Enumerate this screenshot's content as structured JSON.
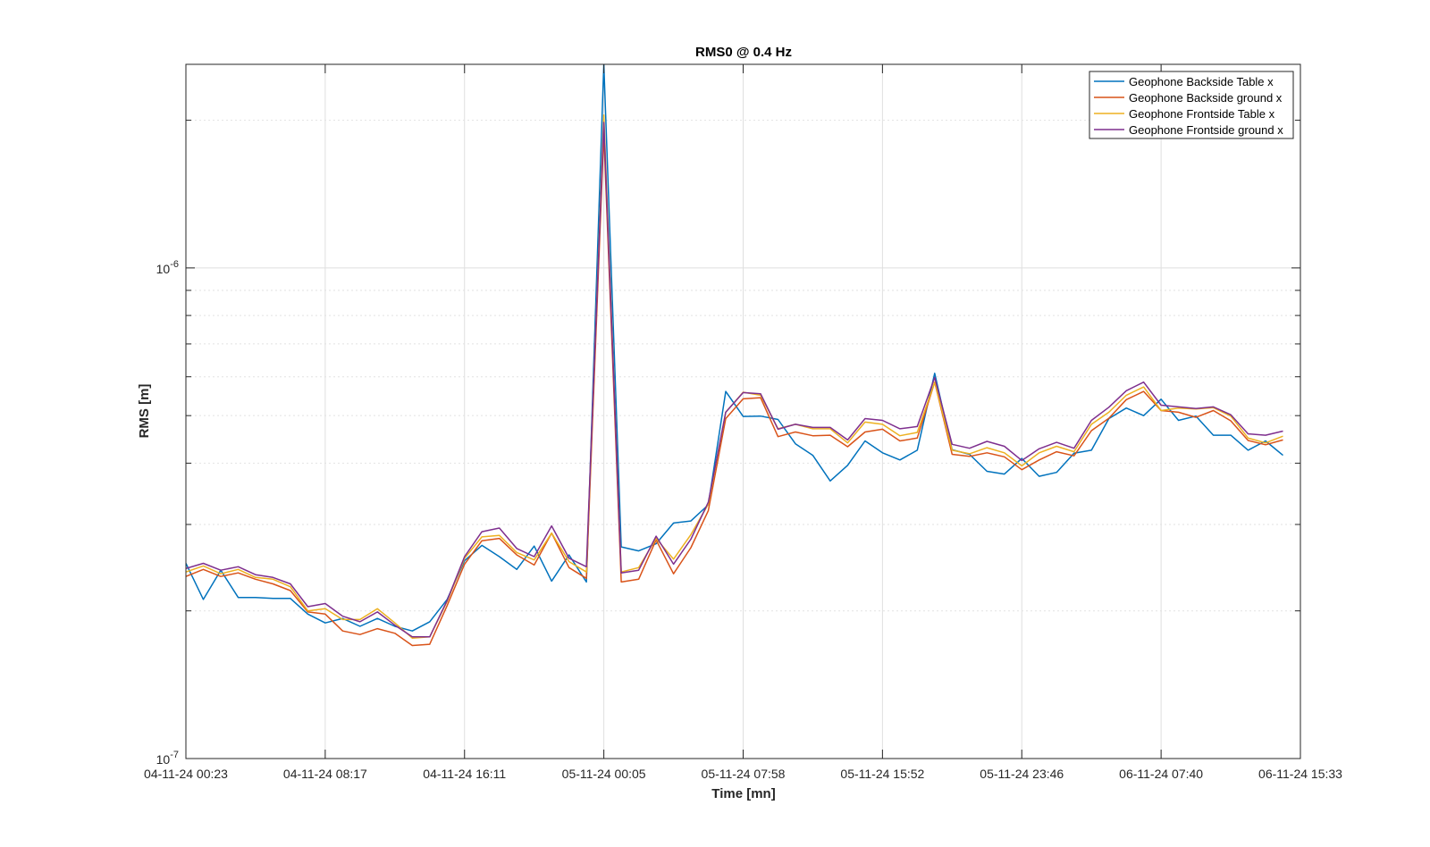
{
  "chart_data": {
    "type": "line",
    "title": "RMS0 @ 0.4 Hz",
    "xlabel": "Time [mn]",
    "ylabel": "RMS [m]",
    "y_scale": "log",
    "ylim": [
      1e-07,
      2.6e-06
    ],
    "xlim": [
      "04-11-24 00:23",
      "06-11-24 15:33"
    ],
    "grid": true,
    "legend_position": "top-right",
    "x_tick_labels": [
      "04-11-24 00:23",
      "04-11-24 08:17",
      "04-11-24 16:11",
      "05-11-24 00:05",
      "05-11-24 07:58",
      "05-11-24 15:52",
      "05-11-24 23:46",
      "06-11-24 07:40",
      "06-11-24 15:33"
    ],
    "y_tick_labels": [
      {
        "base": "10",
        "exp": "-7",
        "value": 1e-07
      },
      {
        "base": "10",
        "exp": "-6",
        "value": 1e-06
      }
    ],
    "x_samples_per_tick": 8,
    "series": [
      {
        "name": "Geophone Backside Table x",
        "color": "#0072BD",
        "values": [
          2.5e-07,
          2.11e-07,
          2.42e-07,
          2.13e-07,
          2.13e-07,
          2.12e-07,
          2.12e-07,
          1.97e-07,
          1.89e-07,
          1.93e-07,
          1.86e-07,
          1.93e-07,
          1.86e-07,
          1.82e-07,
          1.9e-07,
          2.11e-07,
          2.53e-07,
          2.72e-07,
          2.58e-07,
          2.43e-07,
          2.71e-07,
          2.3e-07,
          2.6e-07,
          2.29e-07,
          2.6e-06,
          2.7e-07,
          2.65e-07,
          2.74e-07,
          3.02e-07,
          3.05e-07,
          3.29e-07,
          5.6e-07,
          4.98e-07,
          4.99e-07,
          4.91e-07,
          4.38e-07,
          4.15e-07,
          3.68e-07,
          3.96e-07,
          4.44e-07,
          4.2e-07,
          4.06e-07,
          4.25e-07,
          6.1e-07,
          4.26e-07,
          4.17e-07,
          3.85e-07,
          3.8e-07,
          4.09e-07,
          3.76e-07,
          3.83e-07,
          4.19e-07,
          4.25e-07,
          4.93e-07,
          5.18e-07,
          5e-07,
          5.4e-07,
          4.89e-07,
          4.99e-07,
          4.56e-07,
          4.56e-07,
          4.25e-07,
          4.44e-07,
          4.15e-07
        ]
      },
      {
        "name": "Geophone Backside ground x",
        "color": "#D95319",
        "values": [
          2.35e-07,
          2.43e-07,
          2.35e-07,
          2.39e-07,
          2.32e-07,
          2.27e-07,
          2.2e-07,
          1.99e-07,
          1.97e-07,
          1.82e-07,
          1.79e-07,
          1.84e-07,
          1.8e-07,
          1.7e-07,
          1.71e-07,
          2.05e-07,
          2.49e-07,
          2.78e-07,
          2.81e-07,
          2.6e-07,
          2.48e-07,
          2.88e-07,
          2.45e-07,
          2.33e-07,
          1.88e-06,
          2.29e-07,
          2.32e-07,
          2.79e-07,
          2.38e-07,
          2.69e-07,
          3.2e-07,
          4.93e-07,
          5.41e-07,
          5.44e-07,
          4.53e-07,
          4.63e-07,
          4.55e-07,
          4.56e-07,
          4.32e-07,
          4.63e-07,
          4.69e-07,
          4.44e-07,
          4.5e-07,
          5.85e-07,
          4.17e-07,
          4.13e-07,
          4.2e-07,
          4.12e-07,
          3.88e-07,
          4.06e-07,
          4.22e-07,
          4.14e-07,
          4.66e-07,
          4.94e-07,
          5.39e-07,
          5.6e-07,
          5.12e-07,
          5.08e-07,
          4.96e-07,
          5.12e-07,
          4.88e-07,
          4.45e-07,
          4.36e-07,
          4.46e-07
        ]
      },
      {
        "name": "Geophone Frontside Table x",
        "color": "#EDB120",
        "values": [
          2.4e-07,
          2.47e-07,
          2.38e-07,
          2.43e-07,
          2.34e-07,
          2.32e-07,
          2.24e-07,
          2e-07,
          2.02e-07,
          1.92e-07,
          1.92e-07,
          2.02e-07,
          1.89e-07,
          1.76e-07,
          1.77e-07,
          2.09e-07,
          2.56e-07,
          2.83e-07,
          2.85e-07,
          2.63e-07,
          2.54e-07,
          2.88e-07,
          2.52e-07,
          2.4e-07,
          2.05e-06,
          2.4e-07,
          2.45e-07,
          2.81e-07,
          2.55e-07,
          2.86e-07,
          3.3e-07,
          5.08e-07,
          5.58e-07,
          5.5e-07,
          4.7e-07,
          4.8e-07,
          4.7e-07,
          4.7e-07,
          4.4e-07,
          4.85e-07,
          4.8e-07,
          4.55e-07,
          4.62e-07,
          5.85e-07,
          4.25e-07,
          4.18e-07,
          4.3e-07,
          4.2e-07,
          3.95e-07,
          4.2e-07,
          4.33e-07,
          4.22e-07,
          4.8e-07,
          5.08e-07,
          5.5e-07,
          5.72e-07,
          5.12e-07,
          5.18e-07,
          5.16e-07,
          5.19e-07,
          4.99e-07,
          4.5e-07,
          4.4e-07,
          4.54e-07
        ]
      },
      {
        "name": "Geophone Frontside ground x",
        "color": "#7E2F8E",
        "values": [
          2.44e-07,
          2.5e-07,
          2.42e-07,
          2.46e-07,
          2.37e-07,
          2.34e-07,
          2.27e-07,
          2.04e-07,
          2.07e-07,
          1.95e-07,
          1.9e-07,
          1.99e-07,
          1.87e-07,
          1.77e-07,
          1.77e-07,
          2.1e-07,
          2.58e-07,
          2.9e-07,
          2.95e-07,
          2.68e-07,
          2.58e-07,
          2.98e-07,
          2.56e-07,
          2.46e-07,
          1.98e-06,
          2.39e-07,
          2.42e-07,
          2.84e-07,
          2.49e-07,
          2.8e-07,
          3.33e-07,
          5.08e-07,
          5.57e-07,
          5.54e-07,
          4.69e-07,
          4.8e-07,
          4.73e-07,
          4.73e-07,
          4.46e-07,
          4.93e-07,
          4.89e-07,
          4.7e-07,
          4.75e-07,
          5.98e-07,
          4.37e-07,
          4.29e-07,
          4.43e-07,
          4.33e-07,
          4.05e-07,
          4.28e-07,
          4.41e-07,
          4.29e-07,
          4.89e-07,
          5.2e-07,
          5.62e-07,
          5.85e-07,
          5.25e-07,
          5.21e-07,
          5.17e-07,
          5.21e-07,
          5.02e-07,
          4.59e-07,
          4.56e-07,
          4.65e-07
        ]
      }
    ]
  }
}
